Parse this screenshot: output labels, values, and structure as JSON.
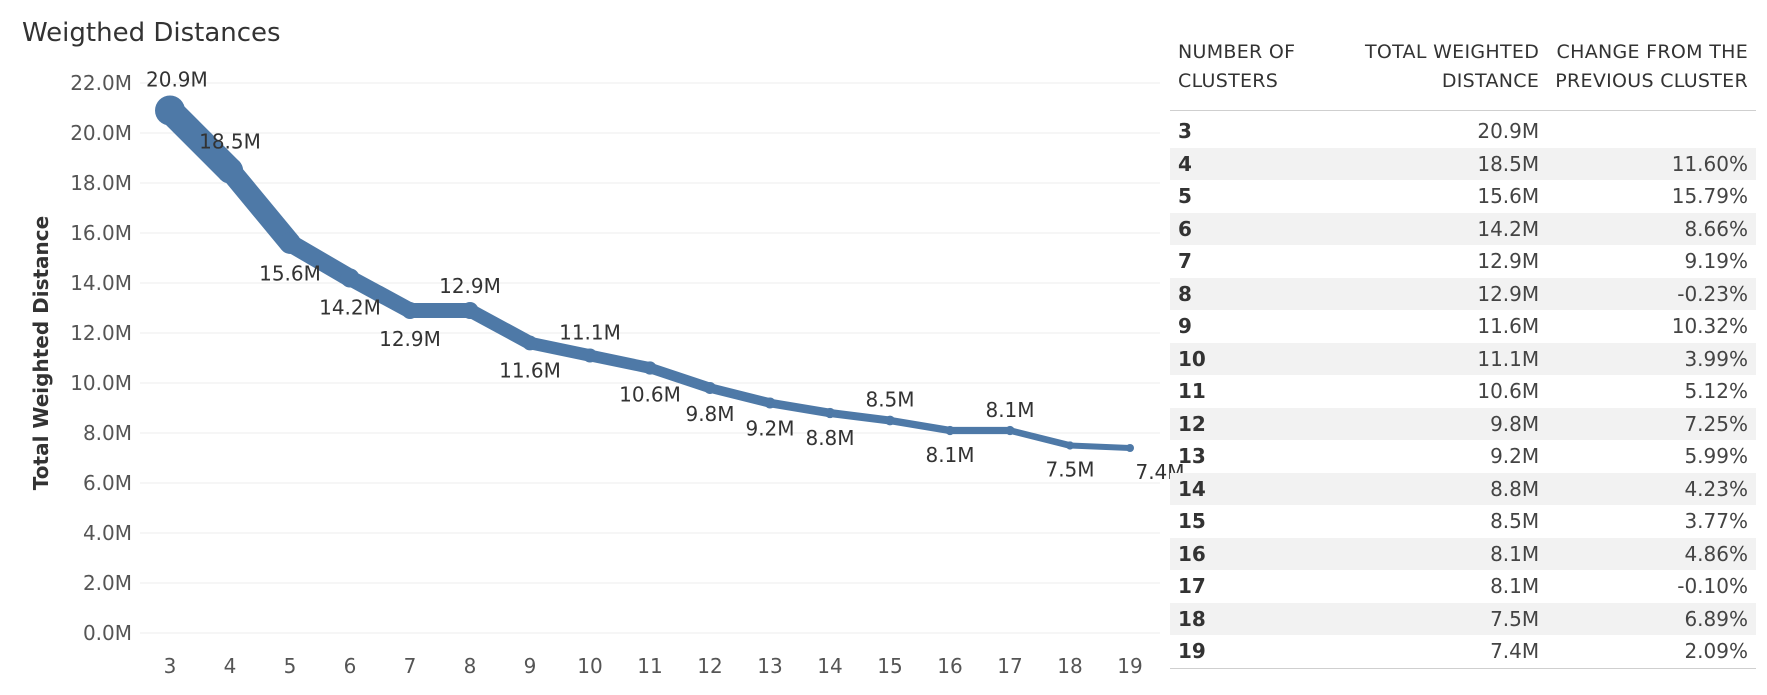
{
  "title": "Weigthed Distances",
  "chart_data": {
    "type": "line",
    "title": "Weigthed Distances",
    "xlabel": "",
    "ylabel": "Total Weighted Distance",
    "ylim": [
      0,
      22
    ],
    "yticks": [
      "0.0M",
      "2.0M",
      "4.0M",
      "6.0M",
      "8.0M",
      "10.0M",
      "12.0M",
      "14.0M",
      "16.0M",
      "18.0M",
      "20.0M",
      "22.0M"
    ],
    "categories": [
      "3",
      "4",
      "5",
      "6",
      "7",
      "8",
      "9",
      "10",
      "11",
      "12",
      "13",
      "14",
      "15",
      "16",
      "17",
      "18",
      "19"
    ],
    "values": [
      20.9,
      18.5,
      15.6,
      14.2,
      12.9,
      12.9,
      11.6,
      11.1,
      10.6,
      9.8,
      9.2,
      8.8,
      8.5,
      8.1,
      8.1,
      7.5,
      7.4
    ],
    "data_labels": [
      "20.9M",
      "18.5M",
      "15.6M",
      "14.2M",
      "12.9M",
      "12.9M",
      "11.6M",
      "11.1M",
      "10.6M",
      "9.8M",
      "9.2M",
      "8.8M",
      "8.5M",
      "8.1M",
      "8.1M",
      "7.5M",
      "7.4M"
    ],
    "label_above": [
      true,
      true,
      false,
      false,
      false,
      true,
      false,
      true,
      false,
      false,
      false,
      false,
      true,
      false,
      true,
      false,
      false
    ],
    "grid": true,
    "color": "#4e79a7"
  },
  "table": {
    "headers": [
      "NUMBER OF CLUSTERS",
      "TOTAL WEIGHTED DISTANCE",
      "CHANGE FROM THE PREVIOUS CLUSTER"
    ],
    "rows": [
      [
        "3",
        "20.9M",
        ""
      ],
      [
        "4",
        "18.5M",
        "11.60%"
      ],
      [
        "5",
        "15.6M",
        "15.79%"
      ],
      [
        "6",
        "14.2M",
        "8.66%"
      ],
      [
        "7",
        "12.9M",
        "9.19%"
      ],
      [
        "8",
        "12.9M",
        "-0.23%"
      ],
      [
        "9",
        "11.6M",
        "10.32%"
      ],
      [
        "10",
        "11.1M",
        "3.99%"
      ],
      [
        "11",
        "10.6M",
        "5.12%"
      ],
      [
        "12",
        "9.8M",
        "7.25%"
      ],
      [
        "13",
        "9.2M",
        "5.99%"
      ],
      [
        "14",
        "8.8M",
        "4.23%"
      ],
      [
        "15",
        "8.5M",
        "3.77%"
      ],
      [
        "16",
        "8.1M",
        "4.86%"
      ],
      [
        "17",
        "8.1M",
        "-0.10%"
      ],
      [
        "18",
        "7.5M",
        "6.89%"
      ],
      [
        "19",
        "7.4M",
        "2.09%"
      ]
    ]
  }
}
